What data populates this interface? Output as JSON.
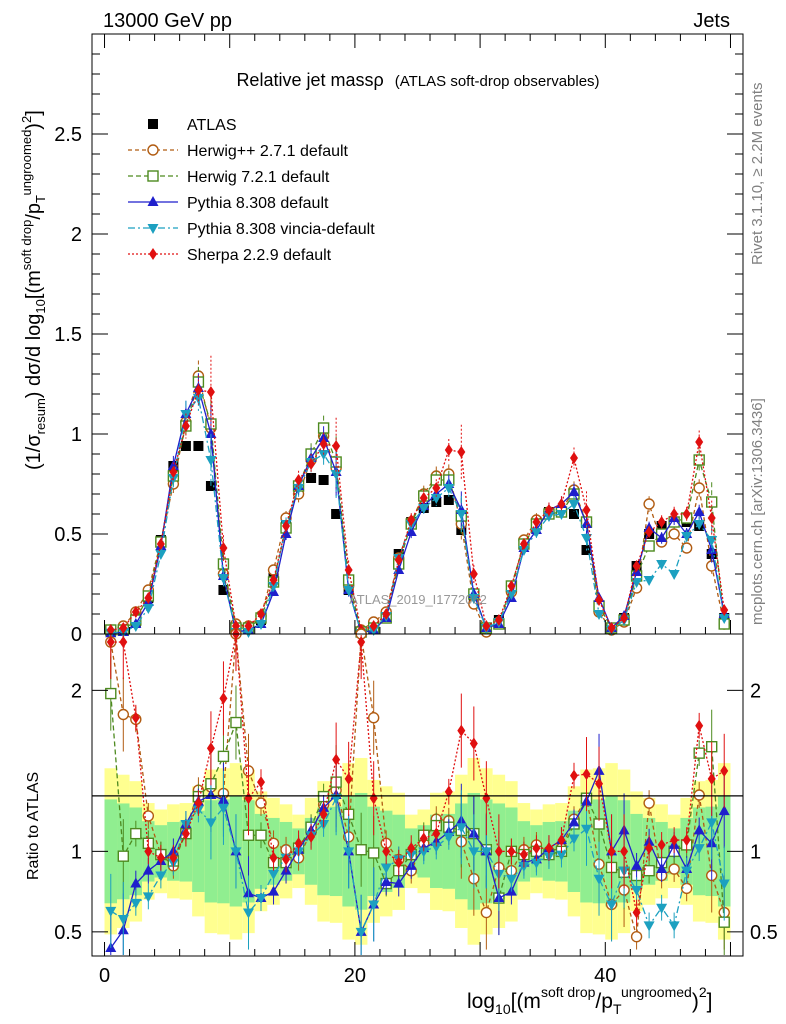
{
  "header": {
    "left": "13000 GeV pp",
    "right": "Jets"
  },
  "side": {
    "rivet": "Rivet 3.1.10, ≥ 2.2M events",
    "mcplots": "mcplots.cern.ch [arXiv:1306.3436]"
  },
  "watermark": "ATLAS_2019_I1772062",
  "chart_data": [
    {
      "type": "line",
      "title_main": "Relative jet massρ",
      "title_sub": "(ATLAS soft-drop observables)",
      "ylabel": "(1/σresum) dσ/d log10[(m^soft drop/pT^ungroomed)^2]",
      "xlabel": "log10[(m^soft drop/pT^ungroomed)^2]",
      "ylim": [
        0,
        3.0
      ],
      "xlim": [
        -1,
        51
      ],
      "yticks": [
        "0",
        "0.5",
        "1",
        "1.5",
        "2",
        "2.5"
      ],
      "xticks": [
        "0",
        "20",
        "40"
      ],
      "legend_position": "top-left",
      "series": [
        {
          "name": "ATLAS",
          "color": "#000000",
          "marker": "square-filled",
          "x": [
            0.5,
            1.5,
            2.5,
            3.5,
            4.5,
            5.5,
            6.5,
            7.5,
            8.5,
            9.5,
            10.5,
            11.5,
            12.5,
            13.5,
            14.5,
            15.5,
            16.5,
            17.5,
            18.5,
            19.5,
            20.5,
            21.5,
            22.5,
            23.5,
            24.5,
            25.5,
            26.5,
            27.5,
            28.5,
            29.5,
            30.5,
            31.5,
            32.5,
            33.5,
            34.5,
            35.5,
            36.5,
            37.5,
            38.5,
            39.5,
            40.5,
            41.5,
            42.5,
            43.5,
            44.5,
            45.5,
            46.5,
            47.5,
            48.5,
            49.5
          ],
          "y": [
            0.01,
            0.02,
            0.06,
            0.18,
            0.47,
            0.84,
            0.94,
            0.94,
            0.74,
            0.22,
            0.01,
            0.03,
            0.07,
            0.28,
            0.57,
            0.73,
            0.78,
            0.77,
            0.6,
            0.22,
            0.01,
            0.03,
            0.1,
            0.4,
            0.56,
            0.63,
            0.66,
            0.67,
            0.52,
            0.18,
            0.03,
            0.07,
            0.24,
            0.46,
            0.55,
            0.61,
            0.61,
            0.6,
            0.42,
            0.12,
            0.03,
            0.08,
            0.34,
            0.5,
            0.54,
            0.56,
            0.56,
            0.54,
            0.4,
            0.08
          ]
        },
        {
          "name": "Herwig++ 2.7.1 default",
          "color": "#b15c12",
          "marker": "circle-open",
          "x": [
            0.5,
            1.5,
            2.5,
            3.5,
            4.5,
            5.5,
            6.5,
            7.5,
            8.5,
            9.5,
            10.5,
            11.5,
            12.5,
            13.5,
            14.5,
            15.5,
            16.5,
            17.5,
            18.5,
            19.5,
            20.5,
            21.5,
            22.5,
            23.5,
            24.5,
            25.5,
            26.5,
            27.5,
            28.5,
            29.5,
            30.5,
            31.5,
            32.5,
            33.5,
            34.5,
            35.5,
            36.5,
            37.5,
            38.5,
            39.5,
            40.5,
            41.5,
            42.5,
            43.5,
            44.5,
            45.5,
            46.5,
            47.5,
            48.5,
            49.5
          ],
          "y": [
            0.02,
            0.04,
            0.11,
            0.22,
            0.46,
            0.75,
            1.06,
            1.29,
            1.03,
            0.3,
            0.05,
            0.04,
            0.09,
            0.32,
            0.58,
            0.7,
            0.87,
            0.99,
            0.83,
            0.24,
            0.02,
            0.06,
            0.11,
            0.38,
            0.56,
            0.7,
            0.79,
            0.8,
            0.55,
            0.15,
            0.01,
            0.06,
            0.21,
            0.47,
            0.57,
            0.61,
            0.62,
            0.72,
            0.56,
            0.11,
            0.02,
            0.06,
            0.23,
            0.65,
            0.46,
            0.5,
            0.43,
            0.73,
            0.34,
            0.05
          ]
        },
        {
          "name": "Herwig 7.2.1 default",
          "color": "#4d8a1f",
          "marker": "square-open",
          "x": [
            0.5,
            1.5,
            2.5,
            3.5,
            4.5,
            5.5,
            6.5,
            7.5,
            8.5,
            9.5,
            10.5,
            11.5,
            12.5,
            13.5,
            14.5,
            15.5,
            16.5,
            17.5,
            18.5,
            19.5,
            20.5,
            21.5,
            22.5,
            23.5,
            24.5,
            25.5,
            26.5,
            27.5,
            28.5,
            29.5,
            30.5,
            31.5,
            32.5,
            33.5,
            34.5,
            35.5,
            36.5,
            37.5,
            38.5,
            39.5,
            40.5,
            41.5,
            42.5,
            43.5,
            44.5,
            45.5,
            46.5,
            47.5,
            48.5,
            49.5
          ],
          "y": [
            0.02,
            0.02,
            0.07,
            0.19,
            0.46,
            0.79,
            1.04,
            1.26,
            1.05,
            0.35,
            0.03,
            0.03,
            0.08,
            0.26,
            0.53,
            0.74,
            0.9,
            1.03,
            0.86,
            0.27,
            0.01,
            0.03,
            0.08,
            0.35,
            0.55,
            0.69,
            0.77,
            0.77,
            0.59,
            0.2,
            0.03,
            0.05,
            0.24,
            0.45,
            0.55,
            0.6,
            0.61,
            0.7,
            0.56,
            0.14,
            0.03,
            0.07,
            0.29,
            0.44,
            0.5,
            0.56,
            0.58,
            0.87,
            0.66,
            0.05
          ]
        },
        {
          "name": "Pythia 8.308 default",
          "color": "#1f1fcc",
          "marker": "triangle-up",
          "x": [
            0.5,
            1.5,
            2.5,
            3.5,
            4.5,
            5.5,
            6.5,
            7.5,
            8.5,
            9.5,
            10.5,
            11.5,
            12.5,
            13.5,
            14.5,
            15.5,
            16.5,
            17.5,
            18.5,
            19.5,
            20.5,
            21.5,
            22.5,
            23.5,
            24.5,
            25.5,
            26.5,
            27.5,
            28.5,
            29.5,
            30.5,
            31.5,
            32.5,
            33.5,
            34.5,
            35.5,
            36.5,
            37.5,
            38.5,
            39.5,
            40.5,
            41.5,
            42.5,
            43.5,
            44.5,
            45.5,
            46.5,
            47.5,
            48.5,
            49.5
          ],
          "y": [
            0.004,
            0.01,
            0.05,
            0.16,
            0.44,
            0.84,
            1.1,
            1.23,
            1.0,
            0.29,
            0.01,
            0.02,
            0.05,
            0.21,
            0.5,
            0.74,
            0.88,
            0.98,
            0.81,
            0.22,
            0.005,
            0.02,
            0.08,
            0.32,
            0.51,
            0.64,
            0.7,
            0.75,
            0.62,
            0.2,
            0.03,
            0.05,
            0.18,
            0.43,
            0.52,
            0.62,
            0.65,
            0.71,
            0.55,
            0.18,
            0.03,
            0.09,
            0.31,
            0.53,
            0.48,
            0.58,
            0.5,
            0.61,
            0.42,
            0.1
          ]
        },
        {
          "name": "Pythia 8.308 vincia-default",
          "color": "#1ca0c0",
          "marker": "triangle-down",
          "x": [
            0.5,
            1.5,
            2.5,
            3.5,
            4.5,
            5.5,
            6.5,
            7.5,
            8.5,
            9.5,
            10.5,
            11.5,
            12.5,
            13.5,
            14.5,
            15.5,
            16.5,
            17.5,
            18.5,
            19.5,
            20.5,
            21.5,
            22.5,
            23.5,
            24.5,
            25.5,
            26.5,
            27.5,
            28.5,
            29.5,
            30.5,
            31.5,
            32.5,
            33.5,
            34.5,
            35.5,
            36.5,
            37.5,
            38.5,
            39.5,
            40.5,
            41.5,
            42.5,
            43.5,
            44.5,
            45.5,
            46.5,
            47.5,
            48.5,
            49.5
          ],
          "y": [
            0.006,
            0.01,
            0.04,
            0.13,
            0.4,
            0.78,
            1.1,
            1.18,
            0.87,
            0.28,
            0.01,
            0.01,
            0.05,
            0.24,
            0.55,
            0.73,
            0.86,
            0.9,
            0.8,
            0.22,
            0.005,
            0.02,
            0.09,
            0.38,
            0.55,
            0.63,
            0.68,
            0.73,
            0.6,
            0.18,
            0.03,
            0.06,
            0.2,
            0.42,
            0.51,
            0.59,
            0.6,
            0.65,
            0.48,
            0.1,
            0.02,
            0.07,
            0.26,
            0.27,
            0.35,
            0.3,
            0.49,
            0.55,
            0.47,
            0.08
          ]
        },
        {
          "name": "Sherpa 2.2.9 default",
          "color": "#e01010",
          "marker": "diamond",
          "x": [
            0.5,
            1.5,
            2.5,
            3.5,
            4.5,
            5.5,
            6.5,
            7.5,
            8.5,
            9.5,
            10.5,
            11.5,
            12.5,
            13.5,
            14.5,
            15.5,
            16.5,
            17.5,
            18.5,
            19.5,
            20.5,
            21.5,
            22.5,
            23.5,
            24.5,
            25.5,
            26.5,
            27.5,
            28.5,
            29.5,
            30.5,
            31.5,
            32.5,
            33.5,
            34.5,
            35.5,
            36.5,
            37.5,
            38.5,
            39.5,
            40.5,
            41.5,
            42.5,
            43.5,
            44.5,
            45.5,
            46.5,
            47.5,
            48.5,
            49.5
          ],
          "y": [
            0.02,
            0.03,
            0.11,
            0.18,
            0.45,
            0.81,
            1.04,
            1.22,
            1.21,
            0.43,
            0.04,
            0.04,
            0.1,
            0.27,
            0.54,
            0.77,
            0.85,
            0.95,
            0.94,
            0.32,
            0.02,
            0.04,
            0.1,
            0.37,
            0.57,
            0.68,
            0.73,
            0.92,
            0.91,
            0.3,
            0.04,
            0.07,
            0.24,
            0.45,
            0.56,
            0.62,
            0.65,
            0.88,
            0.62,
            0.17,
            0.03,
            0.08,
            0.34,
            0.51,
            0.56,
            0.6,
            0.6,
            0.96,
            0.58,
            0.12
          ]
        }
      ]
    },
    {
      "type": "line",
      "ylabel": "Ratio to ATLAS",
      "ylim": [
        0.35,
        2.35
      ],
      "yticks": [
        "0.5",
        "1",
        "2"
      ],
      "reference": 1,
      "series": [
        {
          "name": "Herwig++ 2.7.1 default",
          "color": "#b15c12",
          "y": [
            2.3,
            1.85,
            1.82,
            1.22,
            0.98,
            0.91,
            1.13,
            1.38,
            1.4,
            1.36,
            2.35,
            1.5,
            1.3,
            1.05,
            1.01,
            0.96,
            1.12,
            1.29,
            1.38,
            1.09,
            2.35,
            1.83,
            1.05,
            0.95,
            0.88,
            1.05,
            1.2,
            1.19,
            1.06,
            0.83,
            0.62,
            0.9,
            0.88,
            1.01,
            1.04,
            1.0,
            1.02,
            1.2,
            1.33,
            0.92,
            0.67,
            0.76,
            0.47,
            1.3,
            0.85,
            0.89,
            0.77,
            1.35,
            0.85,
            0.62
          ]
        },
        {
          "name": "Herwig 7.2.1 default",
          "color": "#4d8a1f",
          "y": [
            1.98,
            0.97,
            1.11,
            1.05,
            0.98,
            0.94,
            1.11,
            1.34,
            1.42,
            1.59,
            1.8,
            1.1,
            1.1,
            0.93,
            0.93,
            1.02,
            1.15,
            1.34,
            1.43,
            1.23,
            1.01,
            0.99,
            0.8,
            0.88,
            0.98,
            1.1,
            1.16,
            1.15,
            1.13,
            1.11,
            1.01,
            0.71,
            1.0,
            0.98,
            1.0,
            0.98,
            1.0,
            1.17,
            1.33,
            1.17,
            0.9,
            0.87,
            0.85,
            0.88,
            0.93,
            1.0,
            1.04,
            1.61,
            1.65,
            0.56
          ]
        },
        {
          "name": "Pythia 8.308 default",
          "color": "#1f1fcc",
          "y": [
            0.4,
            0.51,
            0.8,
            0.88,
            0.94,
            1.0,
            1.17,
            1.31,
            1.35,
            1.32,
            1.0,
            0.74,
            0.71,
            0.75,
            0.88,
            1.01,
            1.13,
            1.27,
            1.35,
            1.0,
            0.5,
            0.67,
            0.81,
            0.8,
            0.91,
            1.02,
            1.06,
            1.12,
            1.19,
            1.11,
            1.0,
            0.71,
            0.75,
            0.93,
            0.95,
            1.02,
            1.07,
            1.18,
            1.31,
            1.5,
            1.0,
            1.13,
            0.91,
            1.06,
            0.89,
            1.04,
            0.89,
            1.13,
            1.05,
            1.25
          ]
        },
        {
          "name": "Pythia 8.308 vincia-default",
          "color": "#1ca0c0",
          "y": [
            0.63,
            0.58,
            0.68,
            0.72,
            0.85,
            0.93,
            1.17,
            1.26,
            1.18,
            1.27,
            1.0,
            0.62,
            0.71,
            0.86,
            0.96,
            1.0,
            1.1,
            1.17,
            1.33,
            1.0,
            0.5,
            0.67,
            0.9,
            0.95,
            0.98,
            1.0,
            1.03,
            1.09,
            1.15,
            1.0,
            1.0,
            0.86,
            0.83,
            0.91,
            0.93,
            0.97,
            0.98,
            1.08,
            1.14,
            0.83,
            0.67,
            0.88,
            0.76,
            0.54,
            0.65,
            0.54,
            0.88,
            1.02,
            1.18,
            0.8
          ]
        },
        {
          "name": "Sherpa 2.2.9 default",
          "color": "#e01010",
          "y": [
            2.3,
            2.3,
            1.83,
            1.0,
            0.96,
            0.96,
            1.11,
            1.3,
            1.64,
            1.95,
            2.35,
            1.33,
            1.43,
            0.96,
            0.95,
            1.05,
            1.09,
            1.23,
            1.57,
            1.45,
            2.3,
            1.33,
            1.0,
            0.93,
            1.02,
            1.08,
            1.11,
            1.37,
            1.75,
            1.67,
            1.33,
            1.0,
            1.0,
            0.98,
            1.02,
            1.02,
            1.07,
            1.47,
            1.48,
            1.42,
            1.0,
            1.0,
            0.62,
            1.02,
            1.04,
            1.07,
            1.07,
            1.78,
            1.45,
            1.5
          ]
        }
      ]
    }
  ]
}
